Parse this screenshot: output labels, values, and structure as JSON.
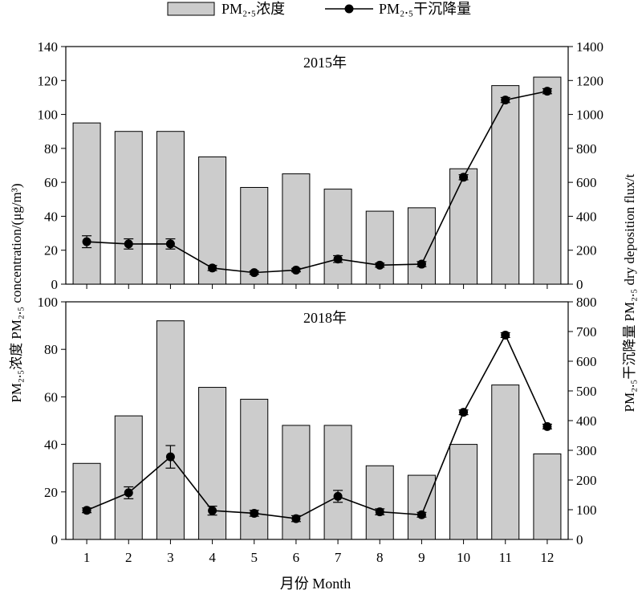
{
  "legend": {
    "bar_label": "PM₂.₅浓度",
    "line_label": "PM₂.₅干沉降量"
  },
  "axes": {
    "y_left_label": "PM₂.₅浓度 PM₂.₅ concentration/(μg/m³)",
    "y_right_label": "PM₂.₅干沉降量 PM₂.₅ dry deposition flux/t",
    "x_label": "月份 Month"
  },
  "colors": {
    "bar_fill": "#cccccc",
    "bar_stroke": "#000000",
    "line": "#000000",
    "marker": "#000000"
  },
  "chart_data": [
    {
      "type": "bar+line",
      "title": "2015年",
      "categories": [
        "1",
        "2",
        "3",
        "4",
        "5",
        "6",
        "7",
        "8",
        "9",
        "10",
        "11",
        "12"
      ],
      "series": [
        {
          "name": "PM₂.₅浓度",
          "axis": "left",
          "kind": "bar",
          "values": [
            95,
            90,
            90,
            75,
            57,
            65,
            56,
            43,
            45,
            68,
            117,
            122
          ]
        },
        {
          "name": "PM₂.₅干沉降量",
          "axis": "right",
          "kind": "line",
          "values": [
            250,
            237,
            237,
            95,
            68,
            83,
            148,
            112,
            118,
            630,
            1085,
            1137
          ],
          "error": [
            35,
            30,
            30,
            15,
            10,
            10,
            20,
            12,
            15,
            15,
            15,
            15
          ]
        }
      ],
      "ylim_left": [
        0,
        140
      ],
      "yticks_left": [
        0,
        20,
        40,
        60,
        80,
        100,
        120,
        140
      ],
      "ylim_right": [
        0,
        1400
      ],
      "yticks_right": [
        0,
        200,
        400,
        600,
        800,
        1000,
        1200,
        1400
      ]
    },
    {
      "type": "bar+line",
      "title": "2018年",
      "categories": [
        "1",
        "2",
        "3",
        "4",
        "5",
        "6",
        "7",
        "8",
        "9",
        "10",
        "11",
        "12"
      ],
      "series": [
        {
          "name": "PM₂.₅浓度",
          "axis": "left",
          "kind": "bar",
          "values": [
            32,
            52,
            92,
            64,
            59,
            48,
            48,
            31,
            27,
            40,
            65,
            36
          ]
        },
        {
          "name": "PM₂.₅干沉降量",
          "axis": "right",
          "kind": "line",
          "values": [
            98,
            157,
            278,
            97,
            88,
            70,
            145,
            93,
            83,
            428,
            688,
            380
          ],
          "error": [
            8,
            20,
            38,
            15,
            10,
            10,
            20,
            10,
            8,
            8,
            8,
            8
          ]
        }
      ],
      "ylim_left": [
        0,
        100
      ],
      "yticks_left": [
        0,
        20,
        40,
        60,
        80,
        100
      ],
      "ylim_right": [
        0,
        800
      ],
      "yticks_right": [
        0,
        100,
        200,
        300,
        400,
        500,
        600,
        700,
        800
      ]
    }
  ]
}
